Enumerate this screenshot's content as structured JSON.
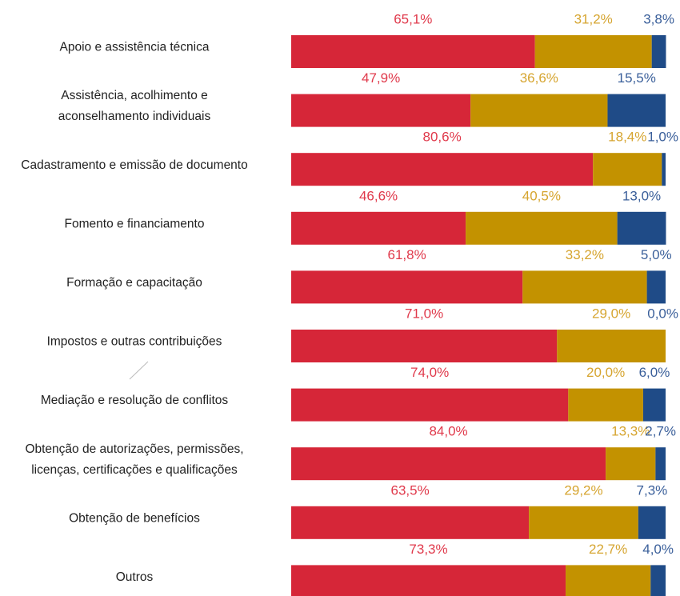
{
  "chart_data": {
    "type": "stacked-bar-horizontal",
    "categories": [
      [
        "Apoio e assistência técnica"
      ],
      [
        "Assistência, acolhimento e",
        "aconselhamento individuais"
      ],
      [
        "Cadastramento e emissão de documento"
      ],
      [
        "Fomento e financiamento"
      ],
      [
        "Formação e capacitação"
      ],
      [
        "Impostos e outras contribuições"
      ],
      [
        "Mediação e resolução de conflitos"
      ],
      [
        "Obtenção de autorizações, permissões,",
        "licenças, certificações e qualificações"
      ],
      [
        "Obtenção de benefícios"
      ],
      [
        "Outros"
      ]
    ],
    "xlim": [
      0,
      100
    ],
    "series": [
      {
        "color": "#d62638",
        "label_color": "#e0394b",
        "values": [
          65.1,
          47.9,
          80.6,
          46.6,
          61.8,
          71.0,
          74.0,
          84.0,
          63.5,
          73.3
        ],
        "value_labels": [
          "65,1%",
          "47,9%",
          "80,6%",
          "46,6%",
          "61,8%",
          "71,0%",
          "74,0%",
          "84,0%",
          "63,5%",
          "73,3%"
        ]
      },
      {
        "color": "#c39200",
        "label_color": "#d6a530",
        "values": [
          31.2,
          36.6,
          18.4,
          40.5,
          33.2,
          29.0,
          20.0,
          13.3,
          29.2,
          22.7
        ],
        "value_labels": [
          "31,2%",
          "36,6%",
          "18,4%",
          "40,5%",
          "33,2%",
          "29,0%",
          "20,0%",
          "13,3%",
          "29,2%",
          "22,7%"
        ]
      },
      {
        "color": "#1f4b87",
        "label_color": "#3a5f9a",
        "values": [
          3.8,
          15.5,
          1.0,
          13.0,
          5.0,
          0.0,
          6.0,
          2.7,
          7.3,
          4.0
        ],
        "value_labels": [
          "3,8%",
          "15,5%",
          "1,0%",
          "13,0%",
          "5,0%",
          "0,0%",
          "6,0%",
          "2,7%",
          "7,3%",
          "4,0%"
        ]
      }
    ]
  }
}
